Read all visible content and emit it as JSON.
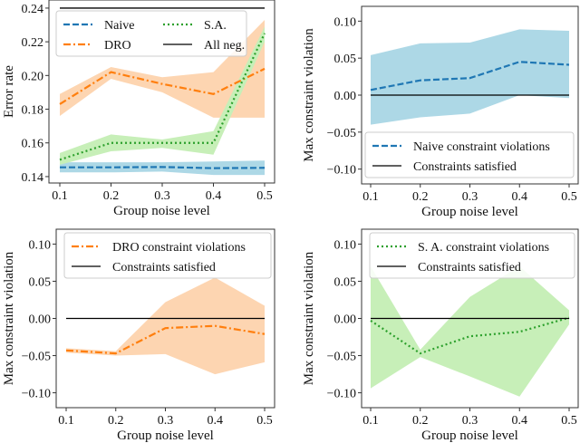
{
  "chart_data": [
    {
      "type": "line",
      "xlabel": "Group noise level",
      "ylabel": "Error rate",
      "x": [
        0.1,
        0.2,
        0.3,
        0.4,
        0.5
      ],
      "xticks": [
        "0.1",
        "0.2",
        "0.3",
        "0.4",
        "0.5"
      ],
      "yticks": [
        0.14,
        0.16,
        0.18,
        0.2,
        0.22,
        0.24
      ],
      "ytick_labels": [
        "0.14",
        "0.16",
        "0.18",
        "0.20",
        "0.22",
        "0.24"
      ],
      "ylim": [
        0.1362,
        0.2448
      ],
      "legend": "upper-left, 2 columns",
      "series": [
        {
          "name": "Naive",
          "color": "#1f77b4",
          "band_color": "#add8e6",
          "style": "dashed",
          "values": [
            0.1455,
            0.1455,
            0.1457,
            0.145,
            0.1452
          ],
          "lower": [
            0.1425,
            0.1425,
            0.143,
            0.141,
            0.141
          ],
          "upper": [
            0.1485,
            0.1485,
            0.1485,
            0.149,
            0.1495
          ]
        },
        {
          "name": "DRO",
          "color": "#ff7f0e",
          "band_color": "#fdd5b1",
          "style": "dashdot",
          "values": [
            0.183,
            0.202,
            0.195,
            0.189,
            0.204
          ],
          "lower": [
            0.176,
            0.198,
            0.19,
            0.175,
            0.175
          ],
          "upper": [
            0.189,
            0.205,
            0.199,
            0.202,
            0.233
          ]
        },
        {
          "name": "S.A.",
          "color": "#2ca02c",
          "band_color": "#c7efb8",
          "style": "dotted",
          "values": [
            0.15,
            0.16,
            0.16,
            0.16,
            0.225
          ],
          "lower": [
            0.147,
            0.155,
            0.157,
            0.153,
            0.22
          ],
          "upper": [
            0.154,
            0.165,
            0.162,
            0.167,
            0.229
          ]
        },
        {
          "name": "All neg.",
          "color": "#000000",
          "style": "solid",
          "values": [
            0.24,
            0.24,
            0.24,
            0.24,
            0.24
          ]
        }
      ]
    },
    {
      "type": "line",
      "xlabel": "Group noise level",
      "ylabel": "Max constraint violation",
      "x": [
        0.1,
        0.2,
        0.3,
        0.4,
        0.5
      ],
      "xticks": [
        "0.1",
        "0.2",
        "0.3",
        "0.4",
        "0.5"
      ],
      "yticks": [
        -0.1,
        -0.05,
        0.0,
        0.05,
        0.1
      ],
      "ytick_labels": [
        "−0.10",
        "−0.05",
        "0.00",
        "0.05",
        "0.10"
      ],
      "ylim": [
        -0.12,
        0.12
      ],
      "legend": "lower-right",
      "series": [
        {
          "name": "Naive constraint violations",
          "color": "#1f77b4",
          "band_color": "#add8e6",
          "style": "dashed",
          "values": [
            0.007,
            0.02,
            0.023,
            0.045,
            0.041
          ],
          "lower": [
            -0.04,
            -0.03,
            -0.025,
            0.0,
            -0.004
          ],
          "upper": [
            0.054,
            0.07,
            0.071,
            0.089,
            0.087
          ]
        },
        {
          "name": "Constraints satisfied",
          "color": "#000000",
          "style": "solid",
          "values": [
            0,
            0,
            0,
            0,
            0
          ]
        }
      ]
    },
    {
      "type": "line",
      "xlabel": "Group noise level",
      "ylabel": "Max constraint violation",
      "x": [
        0.1,
        0.2,
        0.3,
        0.4,
        0.5
      ],
      "xticks": [
        "0.1",
        "0.2",
        "0.3",
        "0.4",
        "0.5"
      ],
      "yticks": [
        -0.1,
        -0.05,
        0.0,
        0.05,
        0.1
      ],
      "ytick_labels": [
        "−0.10",
        "−0.05",
        "0.00",
        "0.05",
        "0.10"
      ],
      "ylim": [
        -0.12,
        0.12
      ],
      "legend": "upper-right",
      "series": [
        {
          "name": "DRO constraint violations",
          "color": "#ff7f0e",
          "band_color": "#fdd5b1",
          "style": "dashdot",
          "values": [
            -0.043,
            -0.047,
            -0.013,
            -0.01,
            -0.021
          ],
          "lower": [
            -0.046,
            -0.05,
            -0.048,
            -0.075,
            -0.059
          ],
          "upper": [
            -0.04,
            -0.044,
            0.022,
            0.055,
            0.017
          ]
        },
        {
          "name": "Constraints satisfied",
          "color": "#000000",
          "style": "solid",
          "values": [
            0,
            0,
            0,
            0,
            0
          ]
        }
      ]
    },
    {
      "type": "line",
      "xlabel": "Group noise level",
      "ylabel": "Max constraint violation",
      "x": [
        0.1,
        0.2,
        0.3,
        0.4,
        0.5
      ],
      "xticks": [
        "0.1",
        "0.2",
        "0.3",
        "0.4",
        "0.5"
      ],
      "yticks": [
        -0.1,
        -0.05,
        0.0,
        0.05,
        0.1
      ],
      "ytick_labels": [
        "−0.10",
        "−0.05",
        "0.00",
        "0.05",
        "0.10"
      ],
      "ylim": [
        -0.12,
        0.12
      ],
      "legend": "upper-right",
      "series": [
        {
          "name": "S. A. constraint violations",
          "color": "#2ca02c",
          "band_color": "#c7efb8",
          "style": "dotted",
          "values": [
            -0.003,
            -0.047,
            -0.024,
            -0.018,
            0.001
          ],
          "lower": [
            -0.094,
            -0.052,
            -0.078,
            -0.105,
            -0.008
          ],
          "upper": [
            0.07,
            -0.042,
            0.029,
            0.07,
            0.011
          ]
        },
        {
          "name": "Constraints satisfied",
          "color": "#000000",
          "style": "solid",
          "values": [
            0,
            0,
            0,
            0,
            0
          ]
        }
      ]
    }
  ]
}
